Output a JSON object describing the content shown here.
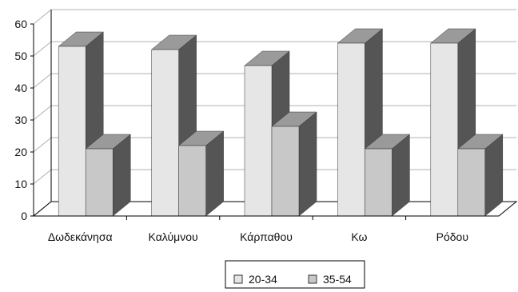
{
  "chart_data": {
    "type": "bar",
    "categories": [
      "Δωδεκάνησα",
      "Καλύμνου",
      "Κάρπαθου",
      "Κω",
      "Ρόδου"
    ],
    "series": [
      {
        "name": "20-34",
        "values": [
          53,
          52,
          47,
          54,
          54
        ]
      },
      {
        "name": "35-54",
        "values": [
          21,
          22,
          28,
          21,
          21
        ]
      }
    ],
    "yticks": [
      0,
      10,
      20,
      30,
      40,
      50,
      60
    ],
    "ylim": [
      0,
      60
    ],
    "grid": true,
    "legend": "bottom-center",
    "title": "",
    "xlabel": "",
    "ylabel": "",
    "colors": {
      "series_1_front": "#e6e6e6",
      "series_2_front": "#c8c8c8",
      "bar_top": "#9a9a9a",
      "bar_side": "#555555",
      "grid": "#b0b0b0",
      "axis": "#000000"
    }
  }
}
